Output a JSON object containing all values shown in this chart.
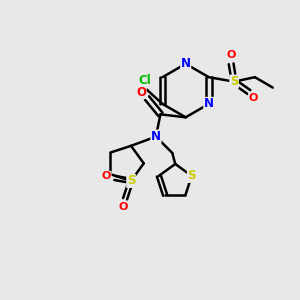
{
  "bg_color": "#e8e8e8",
  "bond_color": "#000000",
  "bond_width": 1.8,
  "atom_colors": {
    "N": "#0000ff",
    "O": "#ff0000",
    "S": "#cccc00",
    "Cl": "#00bb00",
    "C": "#000000"
  },
  "font_size_atom": 8.5
}
